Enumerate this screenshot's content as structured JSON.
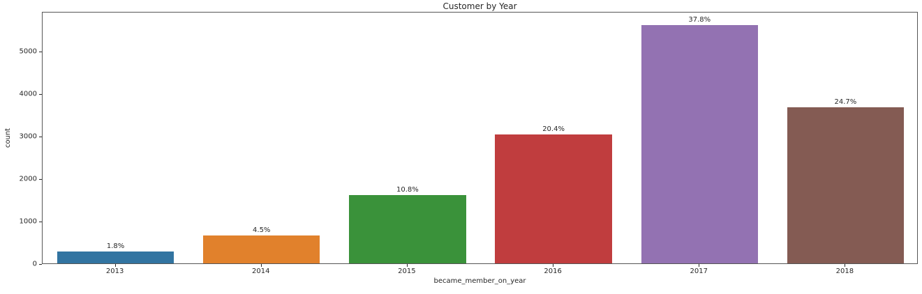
{
  "chart_data": {
    "type": "bar",
    "title": "Customer by Year",
    "xlabel": "became_member_on_year",
    "ylabel": "count",
    "categories": [
      "2013",
      "2014",
      "2015",
      "2016",
      "2017",
      "2018"
    ],
    "values": [
      280,
      660,
      1600,
      3030,
      5600,
      3670
    ],
    "bar_labels": [
      "1.8%",
      "4.5%",
      "10.8%",
      "20.4%",
      "37.8%",
      "24.7%"
    ],
    "bar_colors": [
      "#3274a1",
      "#e1812c",
      "#3a923a",
      "#c03d3e",
      "#9372b2",
      "#845b53"
    ],
    "yticks": [
      0,
      1000,
      2000,
      3000,
      4000,
      5000
    ],
    "ylim": [
      0,
      5935
    ],
    "bar_width_fraction": 0.8,
    "grid": false,
    "legend": "none"
  },
  "colors": {
    "background": "#ffffff",
    "text": "#262626",
    "spine": "#555555"
  }
}
